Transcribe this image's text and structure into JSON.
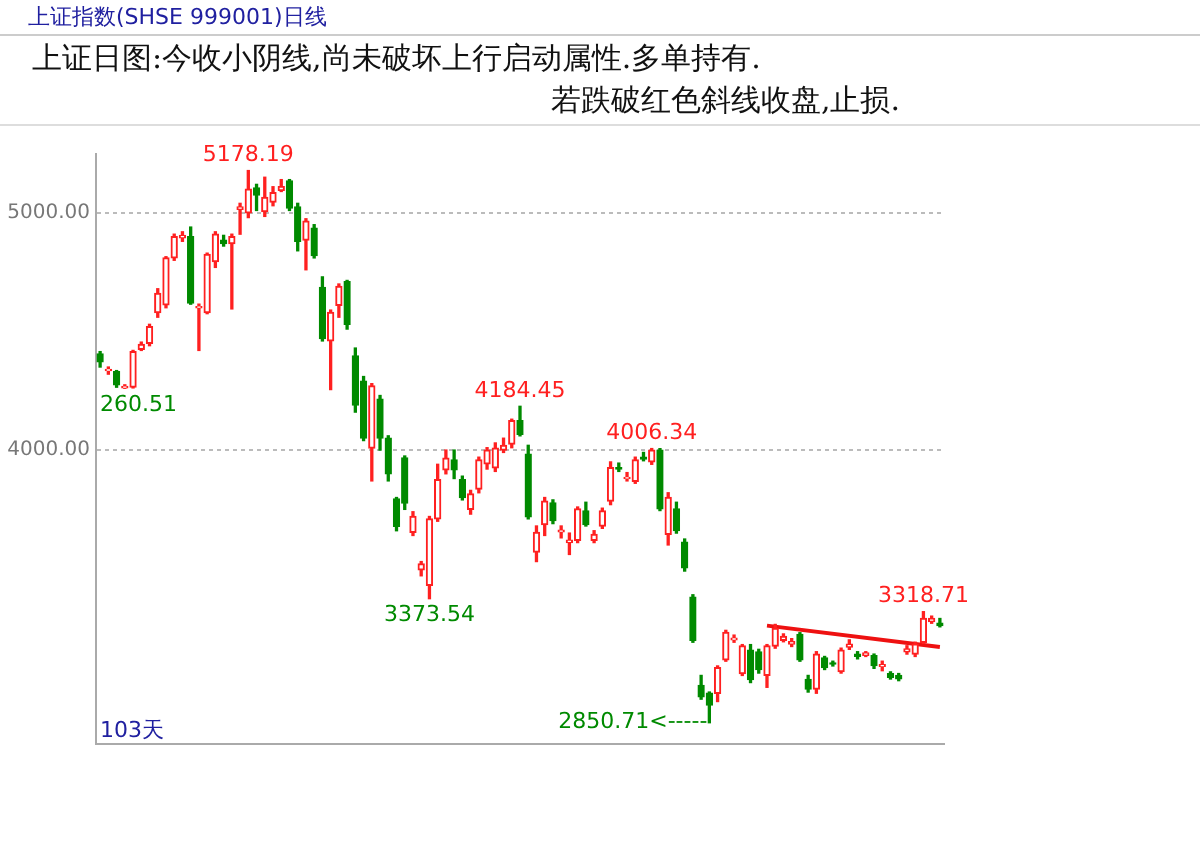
{
  "chart_data": {
    "type": "candlestick",
    "title": "上证指数(SHSE 999001)日线",
    "subtitle": "上证日图:今收小阴线,尚未破坏上行启动属性.多单持有.\n若跌破红色斜线收盘,止损.",
    "categories": [
      null,
      null,
      null,
      null,
      null,
      null,
      null,
      null,
      null,
      null,
      null,
      null,
      null,
      null,
      null,
      null,
      null,
      null,
      null,
      null,
      null,
      null,
      null,
      null,
      null,
      null,
      null,
      null,
      null,
      null,
      null,
      null,
      null,
      null,
      null,
      null,
      null,
      null,
      null,
      null,
      null,
      null,
      null,
      null,
      null,
      null,
      null,
      null,
      null,
      null,
      null,
      null,
      null,
      null,
      null,
      null,
      null,
      null,
      null,
      null,
      null,
      null,
      null,
      null,
      null,
      null,
      null,
      null,
      null,
      null,
      null,
      null,
      null,
      null,
      null,
      null,
      null,
      null,
      null,
      null,
      null,
      null,
      null,
      null,
      null,
      null,
      null,
      null,
      null,
      null,
      null,
      null,
      null,
      null,
      null,
      null,
      null,
      null,
      null,
      null,
      null,
      null,
      null
    ],
    "ohlc": [
      [
        4405,
        4415,
        4350,
        4372
      ],
      [
        4335,
        4350,
        4320,
        4340
      ],
      [
        4330,
        4335,
        4265,
        4275
      ],
      [
        4262,
        4275,
        4260.51,
        4268
      ],
      [
        4265,
        4420,
        4262,
        4415
      ],
      [
        4425,
        4455,
        4420,
        4445
      ],
      [
        4450,
        4530,
        4440,
        4520
      ],
      [
        4580,
        4680,
        4560,
        4660
      ],
      [
        4612,
        4815,
        4600,
        4810
      ],
      [
        4810,
        4910,
        4800,
        4900
      ],
      [
        4895,
        4920,
        4880,
        4905
      ],
      [
        4900,
        4940,
        4615,
        4620
      ],
      [
        4600,
        4615,
        4420,
        4605
      ],
      [
        4580,
        4830,
        4575,
        4825
      ],
      [
        4795,
        4920,
        4770,
        4910
      ],
      [
        4885,
        4905,
        4860,
        4870
      ],
      [
        4870,
        4910,
        4595,
        4900
      ],
      [
        5015,
        5040,
        4910,
        5025
      ],
      [
        5000,
        5178.19,
        4980,
        5100
      ],
      [
        5105,
        5120,
        5010,
        5075
      ],
      [
        5005,
        5150,
        4985,
        5065
      ],
      [
        5045,
        5110,
        5030,
        5085
      ],
      [
        5095,
        5140,
        5090,
        5110
      ],
      [
        5135,
        5140,
        5010,
        5020
      ],
      [
        5025,
        5040,
        4840,
        4880
      ],
      [
        4885,
        4975,
        4760,
        4965
      ],
      [
        4935,
        4950,
        4810,
        4820
      ],
      [
        4686,
        4730,
        4460,
        4470
      ],
      [
        4460,
        4590,
        4255,
        4580
      ],
      [
        4610,
        4700,
        4560,
        4690
      ],
      [
        4710,
        4715,
        4510,
        4530
      ],
      [
        4397,
        4430,
        4160,
        4190
      ],
      [
        4290,
        4310,
        4040,
        4050
      ],
      [
        4008,
        4280,
        3870,
        4270
      ],
      [
        4215,
        4230,
        4000,
        4050
      ],
      [
        4050,
        4060,
        3870,
        3900
      ],
      [
        3794,
        3800,
        3660,
        3678
      ],
      [
        3967,
        3975,
        3750,
        3777
      ],
      [
        3653,
        3740,
        3640,
        3720
      ],
      [
        3495,
        3530,
        3470,
        3520
      ],
      [
        3430,
        3720,
        3373.54,
        3710
      ],
      [
        3710,
        3940,
        3700,
        3875
      ],
      [
        3917,
        4000,
        3900,
        3966
      ],
      [
        3958,
        4000,
        3880,
        3917
      ],
      [
        3875,
        3890,
        3790,
        3800
      ],
      [
        3750,
        3830,
        3730,
        3815
      ],
      [
        3835,
        3970,
        3820,
        3958
      ],
      [
        3942,
        4010,
        3920,
        4000
      ],
      [
        3925,
        4030,
        3910,
        4008
      ],
      [
        4000,
        4050,
        3990,
        4020
      ],
      [
        4025,
        4130,
        4010,
        4124
      ],
      [
        4124,
        4184.45,
        4060,
        4066
      ],
      [
        3983,
        4020,
        3710,
        3719
      ],
      [
        3570,
        3680,
        3530,
        3653
      ],
      [
        3686,
        3800,
        3640,
        3785
      ],
      [
        3777,
        3790,
        3690,
        3703
      ],
      [
        3655,
        3680,
        3630,
        3662
      ],
      [
        3610,
        3650,
        3560,
        3620
      ],
      [
        3620,
        3760,
        3610,
        3752
      ],
      [
        3744,
        3780,
        3680,
        3686
      ],
      [
        3620,
        3660,
        3610,
        3645
      ],
      [
        3680,
        3755,
        3670,
        3744
      ],
      [
        3785,
        3950,
        3770,
        3926
      ],
      [
        3926,
        3945,
        3910,
        3920
      ],
      [
        3880,
        3905,
        3870,
        3885
      ],
      [
        3868,
        3970,
        3860,
        3958
      ],
      [
        3970,
        3990,
        3955,
        3962
      ],
      [
        3950,
        4006.34,
        3940,
        4000
      ],
      [
        4000,
        4006,
        3745,
        3752
      ],
      [
        3645,
        3820,
        3600,
        3800
      ],
      [
        3752,
        3780,
        3650,
        3661
      ],
      [
        3612,
        3625,
        3490,
        3504
      ],
      [
        3380,
        3390,
        3190,
        3198
      ],
      [
        3008,
        3050,
        2950,
        2960
      ],
      [
        2975,
        2980,
        2850.71,
        2925
      ],
      [
        2975,
        3090,
        2940,
        3083
      ],
      [
        3116,
        3240,
        3110,
        3231
      ],
      [
        3200,
        3220,
        3190,
        3207
      ],
      [
        3058,
        3180,
        3050,
        3174
      ],
      [
        3157,
        3180,
        3020,
        3033
      ],
      [
        3149,
        3160,
        3060,
        3075
      ],
      [
        3050,
        3180,
        3000,
        3174
      ],
      [
        3174,
        3265,
        3165,
        3248
      ],
      [
        3198,
        3225,
        3192,
        3215
      ],
      [
        3182,
        3205,
        3172,
        3192
      ],
      [
        3223,
        3230,
        3110,
        3116
      ],
      [
        3033,
        3050,
        2980,
        2992
      ],
      [
        2992,
        3150,
        2975,
        3140
      ],
      [
        3124,
        3130,
        3075,
        3083
      ],
      [
        3103,
        3110,
        3090,
        3098
      ],
      [
        3066,
        3165,
        3060,
        3157
      ],
      [
        3170,
        3200,
        3160,
        3182
      ],
      [
        3140,
        3150,
        3120,
        3130
      ],
      [
        3135,
        3150,
        3130,
        3145
      ],
      [
        3133,
        3140,
        3080,
        3091
      ],
      [
        3088,
        3110,
        3070,
        3095
      ],
      [
        3058,
        3065,
        3035,
        3042
      ],
      [
        3050,
        3058,
        3028,
        3036
      ],
      [
        3150,
        3175,
        3140,
        3162
      ],
      [
        3140,
        3190,
        3130,
        3182
      ],
      [
        3190,
        3318.71,
        3185,
        3290
      ],
      [
        3277,
        3300,
        3270,
        3290
      ],
      [
        3270,
        3290,
        3255,
        3260
      ]
    ],
    "series": [
      {
        "type": "line",
        "color": "#ee1111",
        "values": [
          null,
          null,
          null,
          null,
          null,
          null,
          null,
          null,
          null,
          null,
          null,
          null,
          null,
          null,
          null,
          null,
          null,
          null,
          null,
          null,
          null,
          null,
          null,
          null,
          null,
          null,
          null,
          null,
          null,
          null,
          null,
          null,
          null,
          null,
          null,
          null,
          null,
          null,
          null,
          null,
          null,
          null,
          null,
          null,
          null,
          null,
          null,
          null,
          null,
          null,
          null,
          null,
          null,
          null,
          null,
          null,
          null,
          null,
          null,
          null,
          null,
          null,
          null,
          null,
          null,
          null,
          null,
          null,
          null,
          null,
          null,
          null,
          null,
          null,
          null,
          null,
          null,
          null,
          null,
          null,
          null,
          3260,
          null,
          null,
          null,
          null,
          null,
          null,
          null,
          null,
          null,
          null,
          null,
          null,
          null,
          null,
          null,
          null,
          null,
          null,
          null,
          null,
          3170
        ]
      }
    ],
    "ylim": [
      2761,
      5248
    ],
    "yticks": [
      {
        "value": 4000,
        "label": "4000.00"
      },
      {
        "value": 5000,
        "label": "5000.00"
      }
    ],
    "grid": "y",
    "tick_labels": "y",
    "legend": false,
    "annotations": [
      {
        "text": "5178.19",
        "y": 5178.19
      },
      {
        "text": "260.51",
        "y": 4260.51
      },
      {
        "text": "4184.45",
        "y": 4184.45
      },
      {
        "text": "3373.54",
        "y": 3373.54
      },
      {
        "text": "4006.34",
        "y": 4006.34
      },
      {
        "text": "3318.71",
        "y": 3318.71
      },
      "2850.71<-----",
      "103天"
    ]
  }
}
